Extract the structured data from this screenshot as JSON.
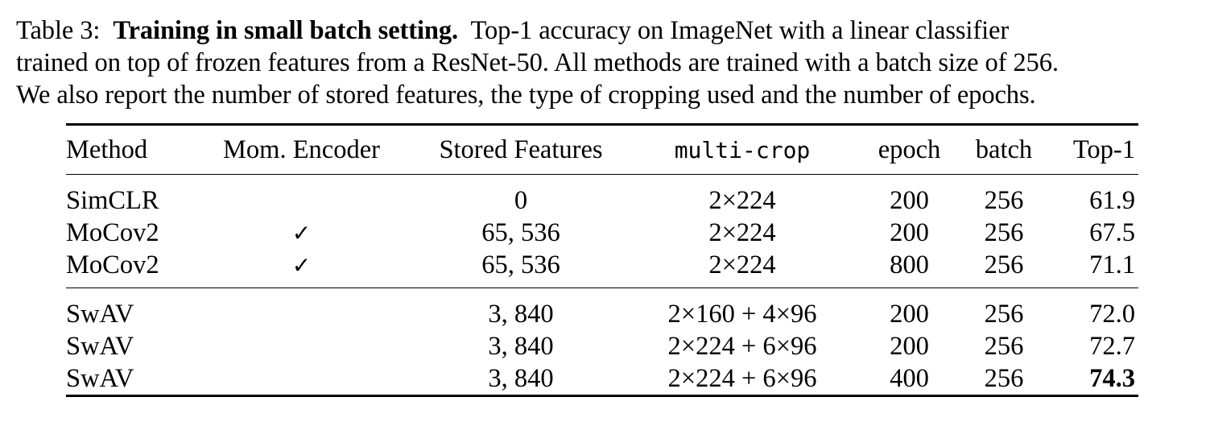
{
  "caption": {
    "label": "Table 3:",
    "bold_title": "Training in small batch setting.",
    "line1_rest": "Top-1 accuracy on ImageNet with a linear classifier",
    "line2": "trained on top of frozen features from a ResNet-50. All methods are trained with a batch size of 256.",
    "line3": "We also report the number of stored features, the type of cropping used and the number of epochs."
  },
  "table": {
    "headers": [
      "Method",
      "Mom. Encoder",
      "Stored Features",
      "multi-crop",
      "epoch",
      "batch",
      "Top-1"
    ],
    "groups": [
      [
        {
          "method": "SimCLR",
          "mom_encoder": "",
          "stored": "0",
          "crop": "2×224",
          "epoch": "200",
          "batch": "256",
          "top1": "61.9"
        },
        {
          "method": "MoCov2",
          "mom_encoder": "✓",
          "stored": "65, 536",
          "crop": "2×224",
          "epoch": "200",
          "batch": "256",
          "top1": "67.5"
        },
        {
          "method": "MoCov2",
          "mom_encoder": "✓",
          "stored": "65, 536",
          "crop": "2×224",
          "epoch": "800",
          "batch": "256",
          "top1": "71.1"
        }
      ],
      [
        {
          "method": "SwAV",
          "mom_encoder": "",
          "stored": "3, 840",
          "crop": "2×160 + 4×96",
          "epoch": "200",
          "batch": "256",
          "top1": "72.0"
        },
        {
          "method": "SwAV",
          "mom_encoder": "",
          "stored": "3, 840",
          "crop": "2×224 + 6×96",
          "epoch": "200",
          "batch": "256",
          "top1": "72.7"
        },
        {
          "method": "SwAV",
          "mom_encoder": "",
          "stored": "3, 840",
          "crop": "2×224 + 6×96",
          "epoch": "400",
          "batch": "256",
          "top1": "74.3"
        }
      ]
    ]
  }
}
